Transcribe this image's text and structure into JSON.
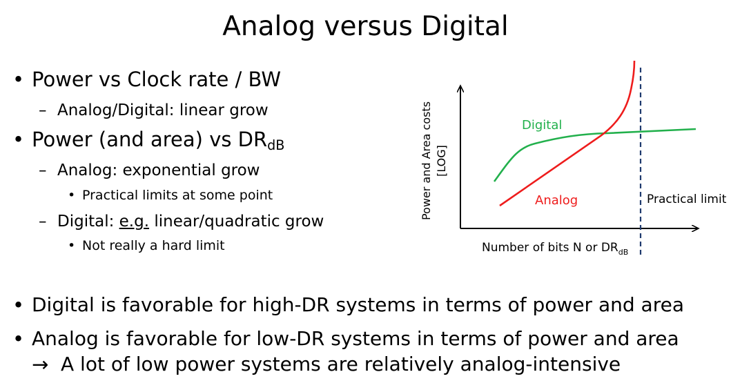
{
  "title": "Analog versus Digital",
  "bullets": {
    "b1": "Power vs Clock rate / BW",
    "b1_1": "Analog/Digital: linear grow",
    "b2_main": "Power (and area) vs DR",
    "b2_sub": "dB",
    "b2_1": "Analog: exponential grow",
    "b2_1_1": "Practical limits at some point",
    "b2_2_prefix": "Digital: ",
    "b2_2_underlined": "e.g.",
    "b2_2_rest": " linear/quadratic grow",
    "b2_2_1": "Not really a hard limit",
    "b3": "Digital is favorable for high-DR systems in terms of power and area",
    "b4": "Analog is favorable for low-DR systems in terms of power and area",
    "b4_cont": "A lot of low power systems are relatively analog-intensive"
  },
  "symbols": {
    "bullet": "•",
    "dash": "–",
    "arrow": "→"
  },
  "diagram": {
    "y_label_line1": "Power and Area costs",
    "y_label_line2": "[LOG]",
    "x_label_main": "Number of bits N or DR",
    "x_label_sub": "dB",
    "digital_label": "Digital",
    "analog_label": "Analog",
    "limit_label": "Practical limit",
    "colors": {
      "digital": "#22b04c",
      "analog": "#ee1c1c",
      "limit": "#1f3a6e",
      "axes": "#000000"
    }
  }
}
